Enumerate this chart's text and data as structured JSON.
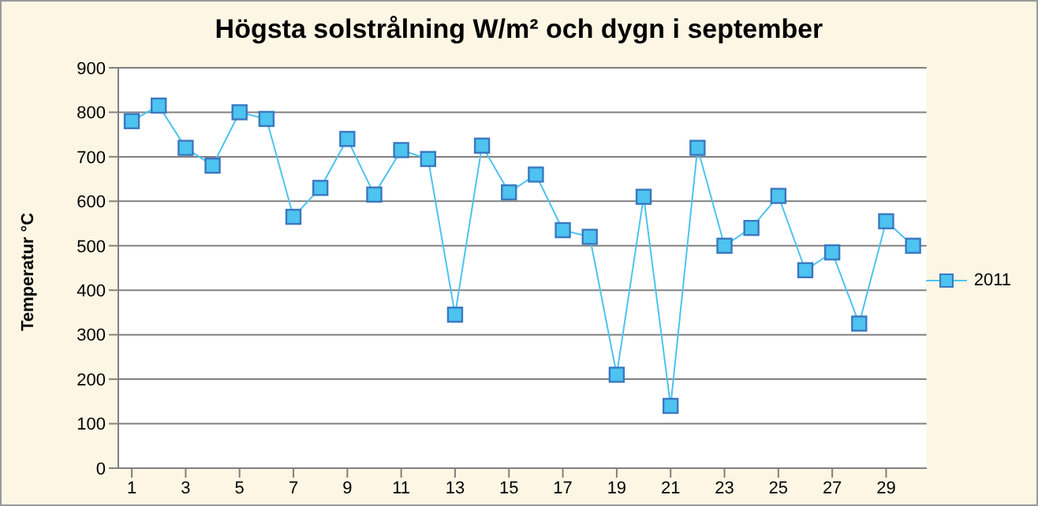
{
  "chart_data": {
    "type": "line",
    "title": "Högsta solstrålning W/m² och dygn i september",
    "ylabel": "Temperatur °C",
    "x": [
      1,
      2,
      3,
      4,
      5,
      6,
      7,
      8,
      9,
      10,
      11,
      12,
      13,
      14,
      15,
      16,
      17,
      18,
      19,
      20,
      21,
      22,
      23,
      24,
      25,
      26,
      27,
      28,
      29,
      30
    ],
    "xlim": [
      0.5,
      30.5
    ],
    "xticks": [
      1,
      3,
      5,
      7,
      9,
      11,
      13,
      15,
      17,
      19,
      21,
      23,
      25,
      27,
      29
    ],
    "series": [
      {
        "name": "2011",
        "color": "#4dc3f0",
        "values": [
          780,
          815,
          720,
          680,
          800,
          785,
          565,
          630,
          740,
          615,
          715,
          695,
          345,
          725,
          620,
          660,
          535,
          520,
          210,
          610,
          140,
          720,
          500,
          540,
          612,
          445,
          485,
          325,
          555,
          500
        ]
      }
    ],
    "ylim": [
      0,
      900
    ],
    "yticks": [
      0,
      100,
      200,
      300,
      400,
      500,
      600,
      700,
      800,
      900
    ],
    "grid": "y",
    "legend": "right",
    "marker": "square",
    "line_style": "solid"
  }
}
